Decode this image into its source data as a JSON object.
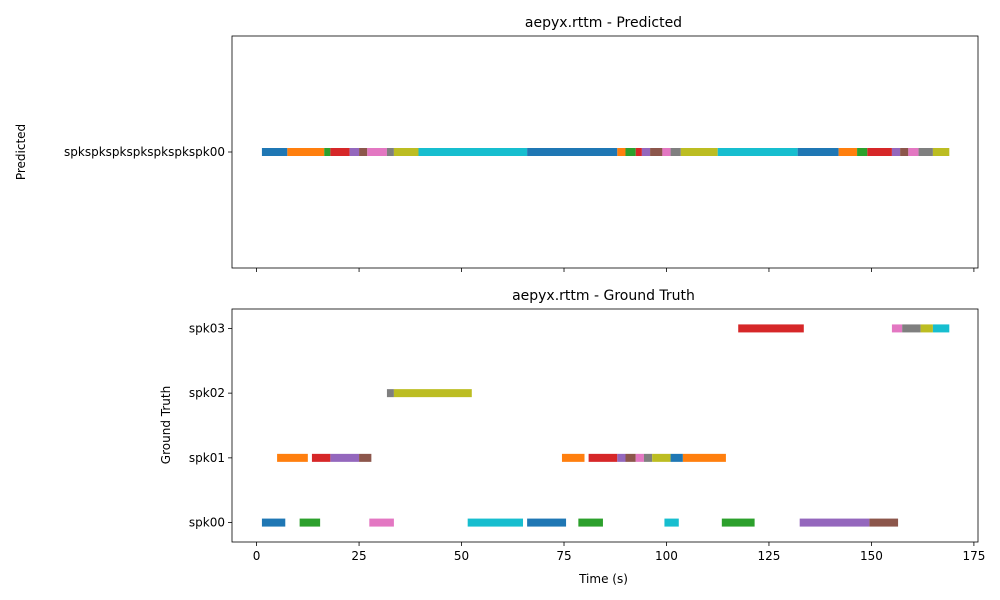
{
  "chart_data": [
    {
      "type": "timeline",
      "title": "aepyx.rttm - Predicted",
      "ylabel": "Predicted",
      "xlabel": "",
      "xlim": [
        -6,
        176
      ],
      "x_ticks": [
        0,
        25,
        50,
        75,
        100,
        125,
        150,
        175
      ],
      "show_x_tick_labels": false,
      "rows": [
        "spkspkspkspkspkspkspk00"
      ],
      "segments": [
        {
          "row": 0,
          "start": 1.3,
          "end": 7.5,
          "color": "#1f77b4"
        },
        {
          "row": 0,
          "start": 7.5,
          "end": 16.5,
          "color": "#ff7f0e"
        },
        {
          "row": 0,
          "start": 16.5,
          "end": 18.0,
          "color": "#2ca02c"
        },
        {
          "row": 0,
          "start": 18.0,
          "end": 22.7,
          "color": "#d62728"
        },
        {
          "row": 0,
          "start": 22.7,
          "end": 25.0,
          "color": "#9467bd"
        },
        {
          "row": 0,
          "start": 25.0,
          "end": 27.0,
          "color": "#8c564b"
        },
        {
          "row": 0,
          "start": 27.0,
          "end": 31.8,
          "color": "#e377c2"
        },
        {
          "row": 0,
          "start": 31.8,
          "end": 33.5,
          "color": "#7f7f7f"
        },
        {
          "row": 0,
          "start": 33.5,
          "end": 39.5,
          "color": "#bcbd22"
        },
        {
          "row": 0,
          "start": 39.5,
          "end": 66.0,
          "color": "#17becf"
        },
        {
          "row": 0,
          "start": 66.0,
          "end": 88.0,
          "color": "#1f77b4"
        },
        {
          "row": 0,
          "start": 88.0,
          "end": 90.0,
          "color": "#ff7f0e"
        },
        {
          "row": 0,
          "start": 90.0,
          "end": 92.5,
          "color": "#2ca02c"
        },
        {
          "row": 0,
          "start": 92.5,
          "end": 94.0,
          "color": "#d62728"
        },
        {
          "row": 0,
          "start": 94.0,
          "end": 96.0,
          "color": "#9467bd"
        },
        {
          "row": 0,
          "start": 96.0,
          "end": 99.0,
          "color": "#8c564b"
        },
        {
          "row": 0,
          "start": 99.0,
          "end": 101.0,
          "color": "#e377c2"
        },
        {
          "row": 0,
          "start": 101.0,
          "end": 103.5,
          "color": "#7f7f7f"
        },
        {
          "row": 0,
          "start": 103.5,
          "end": 112.5,
          "color": "#bcbd22"
        },
        {
          "row": 0,
          "start": 112.5,
          "end": 132.0,
          "color": "#17becf"
        },
        {
          "row": 0,
          "start": 132.0,
          "end": 142.0,
          "color": "#1f77b4"
        },
        {
          "row": 0,
          "start": 142.0,
          "end": 146.5,
          "color": "#ff7f0e"
        },
        {
          "row": 0,
          "start": 146.5,
          "end": 149.0,
          "color": "#2ca02c"
        },
        {
          "row": 0,
          "start": 149.0,
          "end": 155.0,
          "color": "#d62728"
        },
        {
          "row": 0,
          "start": 155.0,
          "end": 157.0,
          "color": "#9467bd"
        },
        {
          "row": 0,
          "start": 157.0,
          "end": 159.0,
          "color": "#8c564b"
        },
        {
          "row": 0,
          "start": 159.0,
          "end": 161.5,
          "color": "#e377c2"
        },
        {
          "row": 0,
          "start": 161.5,
          "end": 165.0,
          "color": "#7f7f7f"
        },
        {
          "row": 0,
          "start": 165.0,
          "end": 169.0,
          "color": "#bcbd22"
        }
      ]
    },
    {
      "type": "timeline",
      "title": "aepyx.rttm - Ground Truth",
      "ylabel": "Ground Truth",
      "xlabel": "Time (s)",
      "xlim": [
        -6,
        176
      ],
      "x_ticks": [
        0,
        25,
        50,
        75,
        100,
        125,
        150,
        175
      ],
      "show_x_tick_labels": true,
      "rows": [
        "spk00",
        "spk01",
        "spk02",
        "spk03"
      ],
      "segments": [
        {
          "row": 0,
          "start": 1.3,
          "end": 7.0,
          "color": "#1f77b4"
        },
        {
          "row": 0,
          "start": 10.5,
          "end": 15.5,
          "color": "#2ca02c"
        },
        {
          "row": 0,
          "start": 27.5,
          "end": 33.5,
          "color": "#e377c2"
        },
        {
          "row": 0,
          "start": 51.5,
          "end": 65.0,
          "color": "#17becf"
        },
        {
          "row": 0,
          "start": 66.0,
          "end": 75.5,
          "color": "#1f77b4"
        },
        {
          "row": 0,
          "start": 78.5,
          "end": 84.5,
          "color": "#2ca02c"
        },
        {
          "row": 0,
          "start": 99.5,
          "end": 103.0,
          "color": "#17becf"
        },
        {
          "row": 0,
          "start": 113.5,
          "end": 121.5,
          "color": "#2ca02c"
        },
        {
          "row": 0,
          "start": 132.5,
          "end": 149.5,
          "color": "#9467bd"
        },
        {
          "row": 0,
          "start": 149.5,
          "end": 156.5,
          "color": "#8c564b"
        },
        {
          "row": 1,
          "start": 5.0,
          "end": 12.5,
          "color": "#ff7f0e"
        },
        {
          "row": 1,
          "start": 13.5,
          "end": 18.0,
          "color": "#d62728"
        },
        {
          "row": 1,
          "start": 18.0,
          "end": 25.0,
          "color": "#9467bd"
        },
        {
          "row": 1,
          "start": 25.0,
          "end": 28.0,
          "color": "#8c564b"
        },
        {
          "row": 1,
          "start": 74.5,
          "end": 80.0,
          "color": "#ff7f0e"
        },
        {
          "row": 1,
          "start": 81.0,
          "end": 88.0,
          "color": "#d62728"
        },
        {
          "row": 1,
          "start": 88.0,
          "end": 90.0,
          "color": "#9467bd"
        },
        {
          "row": 1,
          "start": 90.0,
          "end": 92.5,
          "color": "#8c564b"
        },
        {
          "row": 1,
          "start": 92.5,
          "end": 94.5,
          "color": "#e377c2"
        },
        {
          "row": 1,
          "start": 94.5,
          "end": 96.5,
          "color": "#7f7f7f"
        },
        {
          "row": 1,
          "start": 96.5,
          "end": 101.0,
          "color": "#bcbd22"
        },
        {
          "row": 1,
          "start": 101.0,
          "end": 104.0,
          "color": "#1f77b4"
        },
        {
          "row": 1,
          "start": 104.0,
          "end": 114.5,
          "color": "#ff7f0e"
        },
        {
          "row": 2,
          "start": 31.8,
          "end": 33.5,
          "color": "#7f7f7f"
        },
        {
          "row": 2,
          "start": 33.5,
          "end": 52.5,
          "color": "#bcbd22"
        },
        {
          "row": 3,
          "start": 117.5,
          "end": 133.5,
          "color": "#d62728"
        },
        {
          "row": 3,
          "start": 155.0,
          "end": 157.5,
          "color": "#e377c2"
        },
        {
          "row": 3,
          "start": 157.5,
          "end": 162.0,
          "color": "#7f7f7f"
        },
        {
          "row": 3,
          "start": 162.0,
          "end": 165.0,
          "color": "#bcbd22"
        },
        {
          "row": 3,
          "start": 165.0,
          "end": 169.0,
          "color": "#17becf"
        }
      ]
    }
  ]
}
